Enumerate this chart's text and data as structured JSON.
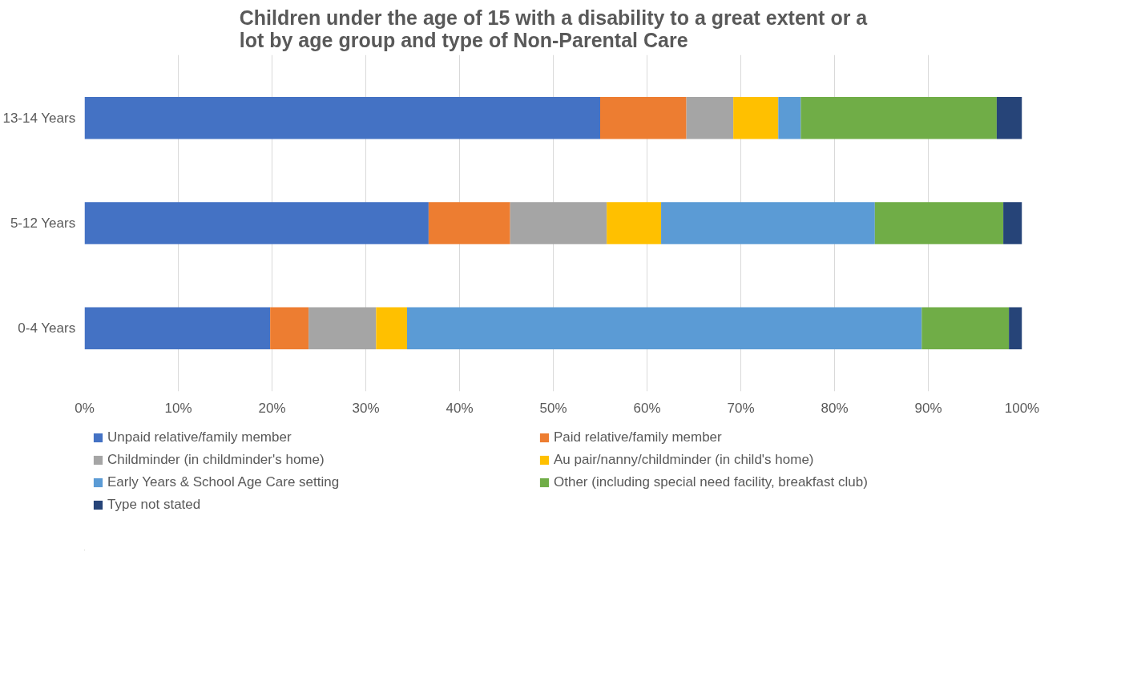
{
  "chart_data": {
    "type": "bar",
    "orientation": "horizontal",
    "stacked": true,
    "title": "Children under the age of 15 with a disability to a great extent or a lot by age group and type of Non-Parental Care",
    "categories": [
      "13-14 Years",
      "5-12 Years",
      "0-4 Years"
    ],
    "series": [
      {
        "name": "Unpaid relative/family member",
        "color": "#4472c4",
        "values": [
          55.0,
          36.7,
          19.8
        ]
      },
      {
        "name": "Paid relative/family member",
        "color": "#ed7d31",
        "values": [
          9.2,
          8.7,
          4.1
        ]
      },
      {
        "name": "Childminder (in childminder's home)",
        "color": "#a5a5a5",
        "values": [
          5.0,
          10.3,
          7.2
        ]
      },
      {
        "name": "Au pair/nanny/childminder (in child's home)",
        "color": "#ffc000",
        "values": [
          4.8,
          5.8,
          3.3
        ]
      },
      {
        "name": "Early Years & School Age Care setting",
        "color": "#5b9bd5",
        "values": [
          2.4,
          22.8,
          54.9
        ]
      },
      {
        "name": "Other (including special need facility, breakfast club)",
        "color": "#70ad47",
        "values": [
          20.9,
          13.7,
          9.3
        ]
      },
      {
        "name": "Type not stated",
        "color": "#264478",
        "values": [
          2.7,
          2.0,
          1.4
        ]
      }
    ],
    "xlim": [
      0,
      100
    ],
    "xticks": [
      {
        "value": 0,
        "label": "0%"
      },
      {
        "value": 10,
        "label": "10%"
      },
      {
        "value": 20,
        "label": "20%"
      },
      {
        "value": 30,
        "label": "30%"
      },
      {
        "value": 40,
        "label": "40%"
      },
      {
        "value": 50,
        "label": "50%"
      },
      {
        "value": 60,
        "label": "60%"
      },
      {
        "value": 70,
        "label": "70%"
      },
      {
        "value": 80,
        "label": "80%"
      },
      {
        "value": 90,
        "label": "90%"
      },
      {
        "value": 100,
        "label": "100%"
      }
    ],
    "grid": "x",
    "legend": "bottom"
  }
}
